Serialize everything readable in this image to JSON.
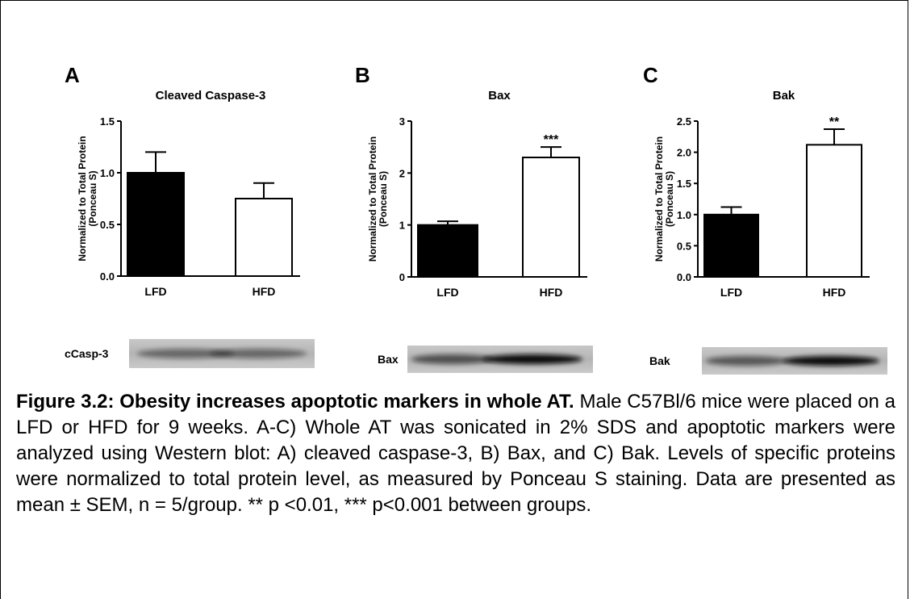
{
  "chart_data": [
    {
      "type": "bar",
      "panel": "A",
      "title": "Cleaved Caspase-3",
      "ylabel": [
        "Normalized to Total Protein",
        "(Ponceau S)"
      ],
      "categories": [
        "LFD",
        "HFD"
      ],
      "values": [
        1.0,
        0.75
      ],
      "errors": [
        0.2,
        0.15
      ],
      "colors": [
        "#000000",
        "#ffffff"
      ],
      "annotations": [
        null,
        null
      ],
      "ylim": [
        0,
        1.5
      ],
      "yticks": [
        {
          "value": 0,
          "label": "0.0"
        },
        0.5,
        {
          "value": 1,
          "label": "1.0"
        },
        1.5
      ],
      "blot_label": "cCasp-3"
    },
    {
      "type": "bar",
      "panel": "B",
      "title": "Bax",
      "ylabel": [
        "Normalized to Total Protein",
        "(Ponceau S)"
      ],
      "categories": [
        "LFD",
        "HFD"
      ],
      "values": [
        1.0,
        2.3
      ],
      "errors": [
        0.07,
        0.2
      ],
      "colors": [
        "#000000",
        "#ffffff"
      ],
      "annotations": [
        null,
        "***"
      ],
      "ylim": [
        0,
        3
      ],
      "yticks": [
        0,
        1,
        2,
        3
      ],
      "blot_label": "Bax"
    },
    {
      "type": "bar",
      "panel": "C",
      "title": "Bak",
      "ylabel": [
        "Normalized to Total Protein",
        "(Ponceau S)"
      ],
      "categories": [
        "LFD",
        "HFD"
      ],
      "values": [
        1.0,
        2.12
      ],
      "errors": [
        0.12,
        0.25
      ],
      "colors": [
        "#000000",
        "#ffffff"
      ],
      "annotations": [
        null,
        "**"
      ],
      "ylim": [
        0,
        2.5
      ],
      "yticks": [
        {
          "value": 0,
          "label": "0.0"
        },
        0.5,
        {
          "value": 1,
          "label": "1.0"
        },
        1.5,
        {
          "value": 2,
          "label": "2.0"
        },
        2.5
      ],
      "blot_label": "Bak"
    }
  ],
  "caption": {
    "title": "Figure 3.2: Obesity increases apoptotic markers in whole AT.",
    "text": "Male C57Bl/6 mice were placed on a LFD or HFD for 9 weeks. A-C) Whole AT was sonicated in 2% SDS and apoptotic markers were analyzed using Western blot: A) cleaved caspase-3, B) Bax, and C) Bak. Levels of specific proteins were normalized to total protein level, as measured by Ponceau S staining. Data are presented as mean ± SEM, n = 5/group. ** p <0.01, *** p<0.001 between groups."
  }
}
